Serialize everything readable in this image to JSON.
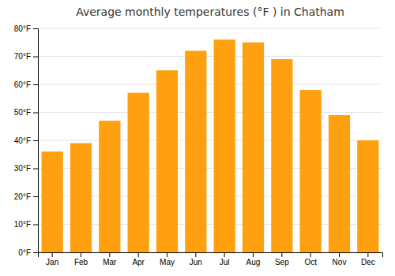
{
  "chart_data": {
    "type": "bar",
    "title": "Average monthly temperatures (°F ) in Chatham",
    "categories": [
      "Jan",
      "Feb",
      "Mar",
      "Apr",
      "May",
      "Jun",
      "Jul",
      "Aug",
      "Sep",
      "Oct",
      "Nov",
      "Dec"
    ],
    "values": [
      36,
      39,
      47,
      57,
      65,
      72,
      76,
      75,
      69,
      58,
      49,
      40
    ],
    "color": "#FFA010",
    "ylim": [
      0,
      80
    ],
    "yticks": [
      {
        "value": 0,
        "label": "0°F"
      },
      {
        "value": 10,
        "label": "10°F"
      },
      {
        "value": 20,
        "label": "20°F"
      },
      {
        "value": 30,
        "label": "30°F"
      },
      {
        "value": 40,
        "label": "40°F"
      },
      {
        "value": 50,
        "label": "50°F"
      },
      {
        "value": 60,
        "label": "60°F"
      },
      {
        "value": 70,
        "label": "70°F"
      },
      {
        "value": 80,
        "label": "80°F"
      }
    ],
    "grid": true
  }
}
